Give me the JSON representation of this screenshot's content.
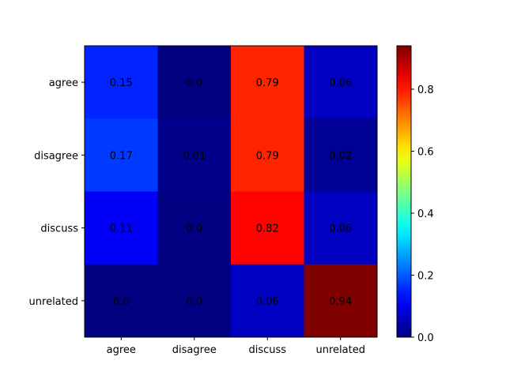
{
  "chart_data": {
    "type": "heatmap",
    "title": "",
    "xlabel": "",
    "ylabel": "",
    "x_categories": [
      "agree",
      "disagree",
      "discuss",
      "unrelated"
    ],
    "y_categories": [
      "agree",
      "disagree",
      "discuss",
      "unrelated"
    ],
    "values": [
      [
        0.15,
        0.0,
        0.79,
        0.06
      ],
      [
        0.17,
        0.01,
        0.79,
        0.02
      ],
      [
        0.11,
        0.0,
        0.82,
        0.06
      ],
      [
        0.0,
        0.0,
        0.06,
        0.94
      ]
    ],
    "value_labels": [
      [
        "0.15",
        "0.0",
        "0.79",
        "0.06"
      ],
      [
        "0.17",
        "0.01",
        "0.79",
        "0.02"
      ],
      [
        "0.11",
        "0.0",
        "0.82",
        "0.06"
      ],
      [
        "0.0",
        "0.0",
        "0.06",
        "0.94"
      ]
    ],
    "colormap": "jet",
    "color_range": [
      0.0,
      0.94
    ],
    "colorbar": {
      "ticks": [
        0.0,
        0.2,
        0.4,
        0.6,
        0.8
      ],
      "tick_labels": [
        "0.0",
        "0.2",
        "0.4",
        "0.6",
        "0.8"
      ],
      "placement": "right"
    },
    "grid": false,
    "legend": "none"
  }
}
